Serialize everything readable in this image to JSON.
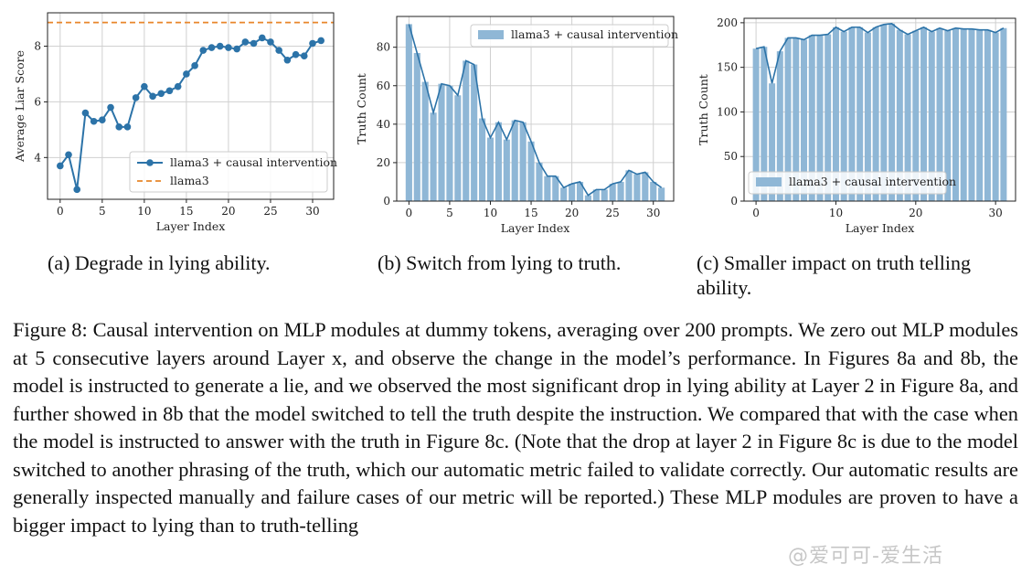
{
  "figure": {
    "caption_label": "Figure 8:",
    "caption_text": "Causal intervention on MLP modules at dummy tokens, averaging over 200 prompts. We zero out MLP modules at 5 consecutive layers around Layer x, and observe the change in the model’s performance. In Figures 8a and 8b, the model is instructed to generate a lie, and we observed the most significant drop in lying ability at Layer 2 in Figure 8a, and further showed in  8b that the model switched to tell the truth despite the instruction. We compared that with the case when the model is instructed to answer with the truth in Figure 8c. (Note that the drop at layer 2 in Figure 8c is due to the model switched to another phrasing of the truth, which our automatic metric failed to validate correctly. Our automatic results are generally inspected manually and failure cases of our metric will be reported.) These MLP modules are proven to have a bigger impact to lying than to truth-telling",
    "watermark": "@爱可可-爱生活",
    "colors": {
      "line": "#2c73a8",
      "bar": "#8fb7d6",
      "baseline": "#e8862a",
      "grid": "#d0d0d0"
    }
  },
  "subcaptions": {
    "a": "(a) Degrade in lying ability.",
    "b": "(b) Switch from lying to truth.",
    "c": "(c) Smaller impact on truth telling ability."
  },
  "chart_data": [
    {
      "type": "line",
      "xlabel": "Layer Index",
      "ylabel": "Average Liar Score",
      "xlim": [
        -1.5,
        32.5
      ],
      "ylim": [
        2.5,
        9.2
      ],
      "xticks": [
        0,
        5,
        10,
        15,
        20,
        25,
        30
      ],
      "yticks": [
        4,
        6,
        8
      ],
      "x": [
        0,
        1,
        2,
        3,
        4,
        5,
        6,
        7,
        8,
        9,
        10,
        11,
        12,
        13,
        14,
        15,
        16,
        17,
        18,
        19,
        20,
        21,
        22,
        23,
        24,
        25,
        26,
        27,
        28,
        29,
        30,
        31
      ],
      "series": [
        {
          "name": "llama3 + causal intervention",
          "values": [
            3.7,
            4.1,
            2.85,
            5.6,
            5.3,
            5.35,
            5.8,
            5.1,
            5.1,
            6.15,
            6.55,
            6.2,
            6.3,
            6.4,
            6.55,
            7.0,
            7.3,
            7.85,
            7.95,
            8.0,
            7.95,
            7.9,
            8.15,
            8.1,
            8.3,
            8.15,
            7.85,
            7.5,
            7.7,
            7.65,
            8.1,
            8.2
          ]
        },
        {
          "name": "llama3",
          "baseline": 8.85
        }
      ],
      "legend": "lower-right",
      "grid": true
    },
    {
      "type": "bar",
      "xlabel": "Layer Index",
      "ylabel": "Truth Count",
      "xlim": [
        -1.5,
        32.5
      ],
      "ylim": [
        0,
        96
      ],
      "xticks": [
        0,
        5,
        10,
        15,
        20,
        25,
        30
      ],
      "yticks": [
        0,
        20,
        40,
        60,
        80
      ],
      "x": [
        0,
        1,
        2,
        3,
        4,
        5,
        6,
        7,
        8,
        9,
        10,
        11,
        12,
        13,
        14,
        15,
        16,
        17,
        18,
        19,
        20,
        21,
        22,
        23,
        24,
        25,
        26,
        27,
        28,
        29,
        30,
        31
      ],
      "series": [
        {
          "name": "llama3 + causal intervention",
          "values": [
            92,
            77,
            62,
            46,
            61,
            60,
            55,
            73,
            71,
            43,
            33,
            41,
            32,
            42,
            41,
            31,
            20,
            13,
            13,
            7,
            9,
            10,
            3,
            6,
            6,
            9,
            10,
            16,
            14,
            15,
            10,
            7
          ]
        }
      ],
      "legend": "top-right",
      "grid": true
    },
    {
      "type": "bar",
      "xlabel": "Layer Index",
      "ylabel": "Truth Count",
      "xlim": [
        -1.5,
        32.5
      ],
      "ylim": [
        0,
        205
      ],
      "xticks": [
        0,
        10,
        20,
        30
      ],
      "yticks": [
        0,
        50,
        100,
        150,
        200
      ],
      "x": [
        0,
        1,
        2,
        3,
        4,
        5,
        6,
        7,
        8,
        9,
        10,
        11,
        12,
        13,
        14,
        15,
        16,
        17,
        18,
        19,
        20,
        21,
        22,
        23,
        24,
        25,
        26,
        27,
        28,
        29,
        30,
        31
      ],
      "series": [
        {
          "name": "llama3 + causal intervention",
          "values": [
            171,
            173,
            132,
            168,
            183,
            183,
            181,
            186,
            186,
            187,
            195,
            190,
            195,
            195,
            189,
            195,
            198,
            199,
            192,
            187,
            191,
            195,
            190,
            194,
            191,
            194,
            193,
            193,
            192,
            192,
            189,
            194
          ]
        }
      ],
      "legend": "lower-left",
      "grid": true
    }
  ]
}
